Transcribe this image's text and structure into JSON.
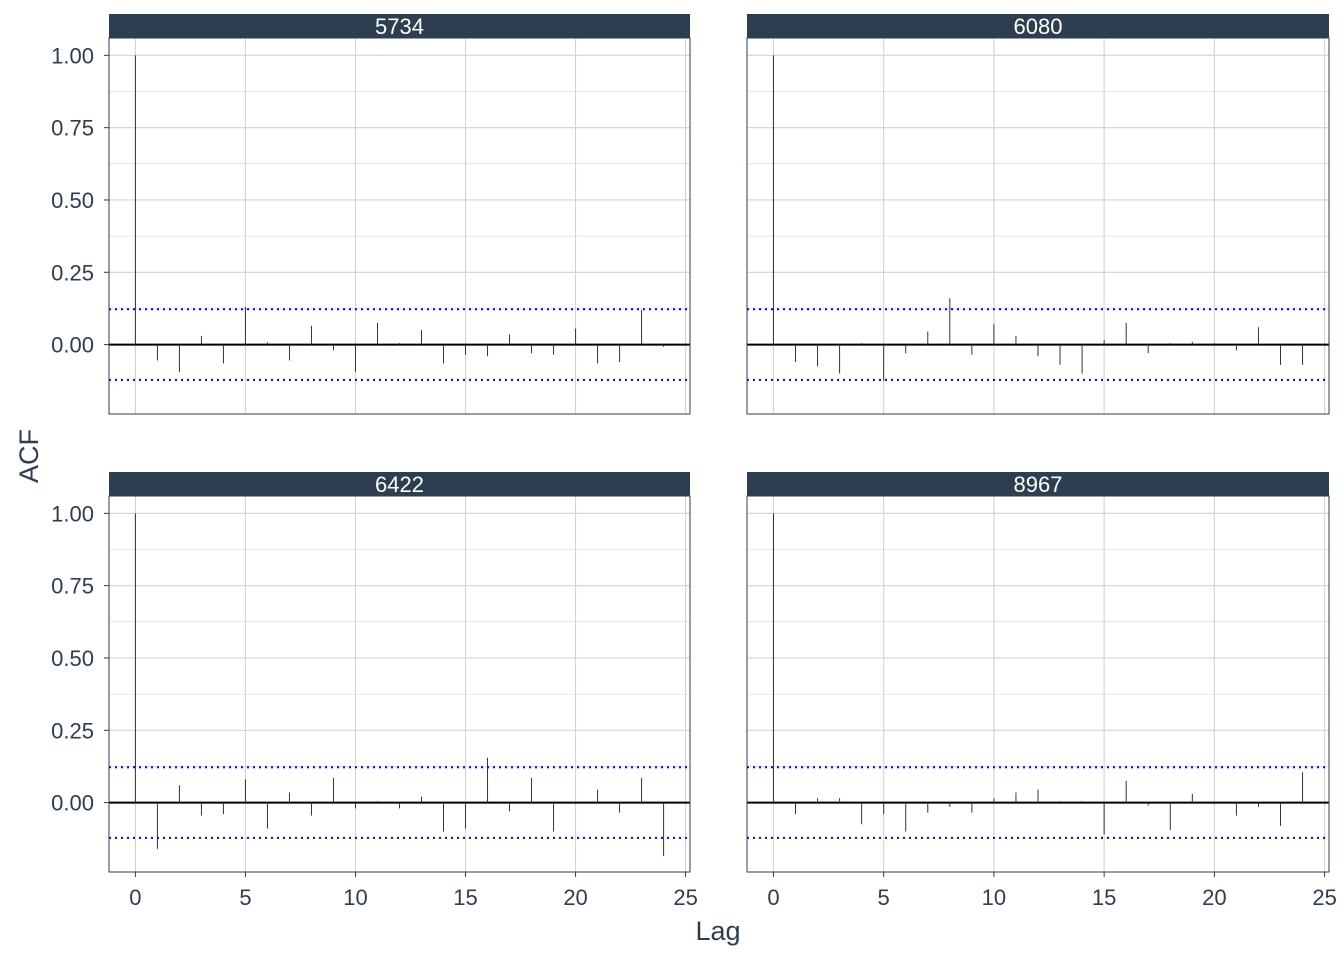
{
  "chart_data": {
    "type": "bar",
    "subtype": "acf-facet-grid",
    "xlabel": "Lag",
    "ylabel": "ACF",
    "x_ticks": [
      0,
      5,
      10,
      15,
      20,
      25
    ],
    "y_ticks": [
      0.0,
      0.25,
      0.5,
      0.75,
      1.0
    ],
    "y_tick_labels": [
      "0.00",
      "0.25",
      "0.50",
      "0.75",
      "1.00"
    ],
    "xlim": [
      -1.2,
      25.2
    ],
    "ylim": [
      -0.24,
      1.06
    ],
    "grid": true,
    "colors": {
      "strip_bg": "#2c3e50",
      "strip_text": "#ffffff",
      "panel_border": "#2c3e50",
      "grid": "#d3d3d3",
      "zero_line": "#000000",
      "acf_bar": "#333333",
      "conf_line": "#0000ff",
      "tick_text": "#2c3e50",
      "axis_title": "#2c3e50"
    },
    "panels": [
      {
        "title": "5734",
        "confidence_bound": 0.122,
        "lags": [
          0,
          1,
          2,
          3,
          4,
          5,
          6,
          7,
          8,
          9,
          10,
          11,
          12,
          13,
          14,
          15,
          16,
          17,
          18,
          19,
          20,
          21,
          22,
          23,
          24
        ],
        "acf": [
          1.0,
          -0.055,
          -0.095,
          0.03,
          -0.065,
          0.13,
          0.008,
          -0.055,
          0.065,
          -0.02,
          -0.095,
          0.075,
          0.005,
          0.05,
          -0.065,
          -0.035,
          -0.04,
          0.035,
          -0.03,
          -0.035,
          0.055,
          -0.065,
          -0.06,
          0.12,
          -0.008
        ]
      },
      {
        "title": "6080",
        "confidence_bound": 0.122,
        "lags": [
          0,
          1,
          2,
          3,
          4,
          5,
          6,
          7,
          8,
          9,
          10,
          11,
          12,
          13,
          14,
          15,
          16,
          17,
          18,
          19,
          20,
          21,
          22,
          23,
          24
        ],
        "acf": [
          1.0,
          -0.06,
          -0.075,
          -0.1,
          0.005,
          -0.125,
          -0.03,
          0.045,
          0.16,
          -0.035,
          0.07,
          0.03,
          -0.04,
          -0.07,
          -0.1,
          0.015,
          0.075,
          -0.03,
          0.005,
          0.01,
          0.005,
          -0.02,
          0.06,
          -0.07,
          -0.07
        ]
      },
      {
        "title": "6422",
        "confidence_bound": 0.122,
        "lags": [
          0,
          1,
          2,
          3,
          4,
          5,
          6,
          7,
          8,
          9,
          10,
          11,
          12,
          13,
          14,
          15,
          16,
          17,
          18,
          19,
          20,
          21,
          22,
          23,
          24
        ],
        "acf": [
          1.0,
          -0.16,
          0.06,
          -0.045,
          -0.04,
          0.08,
          -0.09,
          0.035,
          -0.045,
          0.085,
          -0.02,
          0.005,
          -0.02,
          0.02,
          -0.1,
          -0.09,
          0.155,
          -0.03,
          0.085,
          -0.1,
          -0.005,
          0.045,
          -0.035,
          0.085,
          -0.185
        ]
      },
      {
        "title": "8967",
        "confidence_bound": 0.122,
        "lags": [
          0,
          1,
          2,
          3,
          4,
          5,
          6,
          7,
          8,
          9,
          10,
          11,
          12,
          13,
          14,
          15,
          16,
          17,
          18,
          19,
          20,
          21,
          22,
          23,
          24
        ],
        "acf": [
          1.0,
          -0.04,
          0.015,
          0.015,
          -0.075,
          -0.04,
          -0.1,
          -0.035,
          -0.015,
          -0.035,
          0.015,
          0.035,
          0.045,
          0.005,
          0.005,
          -0.11,
          0.075,
          -0.01,
          -0.095,
          0.03,
          -0.005,
          -0.045,
          -0.015,
          -0.08,
          0.105
        ]
      }
    ]
  }
}
